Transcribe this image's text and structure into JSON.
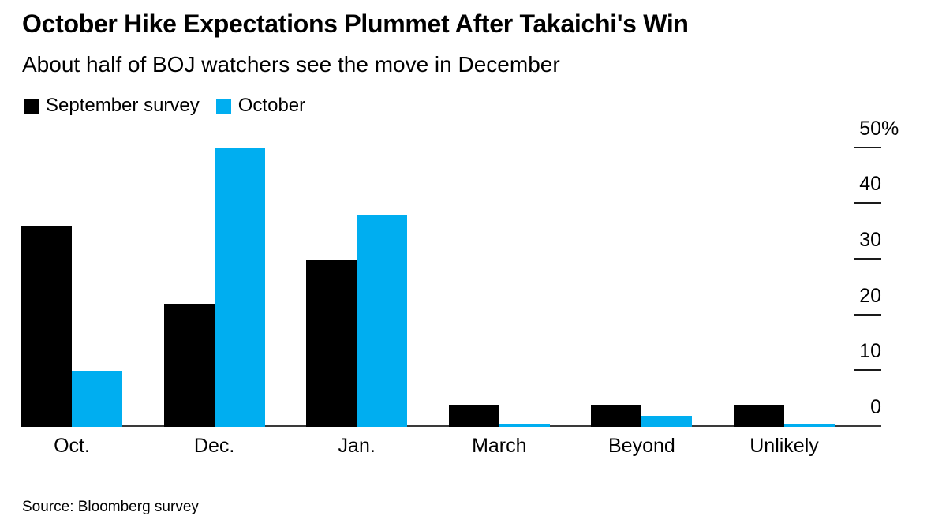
{
  "header": {
    "title": "October Hike Expectations Plummet After Takaichi's Win",
    "subtitle": "About half of BOJ watchers see the move in December"
  },
  "legend": {
    "items": [
      {
        "label": "September survey",
        "color": "#000000"
      },
      {
        "label": "October",
        "color": "#00AEF0"
      }
    ]
  },
  "footer": {
    "source": "Source: Bloomberg survey"
  },
  "chart_data": {
    "type": "bar",
    "title": "October Hike Expectations Plummet After Takaichi's Win",
    "subtitle": "About half of BOJ watchers see the move in December",
    "categories": [
      "Oct.",
      "Dec.",
      "Jan.",
      "March",
      "Beyond",
      "Unlikely"
    ],
    "series": [
      {
        "name": "September survey",
        "color": "#000000",
        "values": [
          36,
          22,
          30,
          4,
          4,
          4
        ]
      },
      {
        "name": "October",
        "color": "#00AEF0",
        "values": [
          10,
          50,
          38,
          0,
          2,
          0
        ]
      }
    ],
    "xlabel": "",
    "ylabel": "",
    "y_axis": {
      "ticks": [
        0,
        10,
        20,
        30,
        40,
        50
      ],
      "max_tick_suffix": "%",
      "range": [
        0,
        50
      ]
    },
    "legend_position": "top-left",
    "grid": "none",
    "axis_side": "right",
    "source": "Source: Bloomberg survey"
  }
}
